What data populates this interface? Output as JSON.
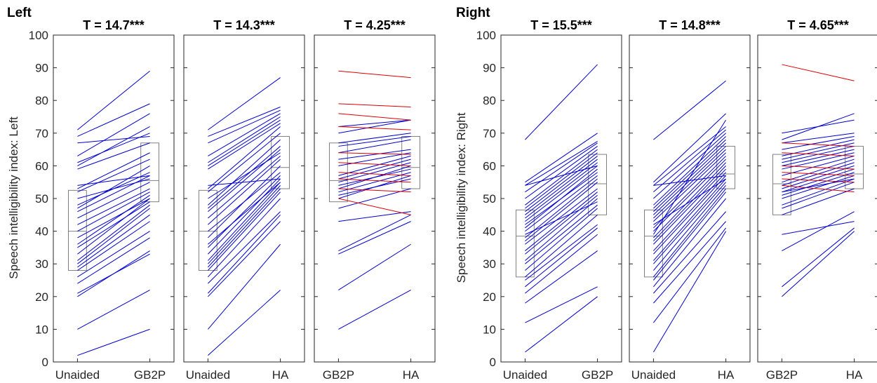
{
  "figure": {
    "groups": [
      {
        "title": "Left",
        "ylabel": "Speech intelligibility index: Left"
      },
      {
        "title": "Right",
        "ylabel": "Speech intelligibility index: Right"
      }
    ]
  },
  "chart_data": [
    {
      "type": "line",
      "group": "Left",
      "title": "T = 14.7***",
      "categories": [
        "Unaided",
        "GB2P"
      ],
      "ylim": [
        0,
        100
      ],
      "yticks": [
        "0",
        "10",
        "20",
        "30",
        "40",
        "50",
        "60",
        "70",
        "80",
        "90",
        "100"
      ],
      "box": [
        {
          "q1": 28,
          "median": 40,
          "q3": 52.5
        },
        {
          "q1": 49,
          "median": 55.5,
          "q3": 67
        }
      ],
      "pairs": [
        [
          2,
          10
        ],
        [
          10,
          22
        ],
        [
          20,
          34
        ],
        [
          21,
          33
        ],
        [
          24,
          38
        ],
        [
          26,
          40
        ],
        [
          28,
          43
        ],
        [
          29,
          45
        ],
        [
          30,
          47
        ],
        [
          31,
          48
        ],
        [
          33,
          50
        ],
        [
          35,
          49
        ],
        [
          36,
          51
        ],
        [
          38,
          50
        ],
        [
          40,
          52
        ],
        [
          42,
          53
        ],
        [
          44,
          55
        ],
        [
          46,
          57
        ],
        [
          47,
          60
        ],
        [
          48,
          58
        ],
        [
          50,
          56
        ],
        [
          52,
          62
        ],
        [
          53,
          64
        ],
        [
          54,
          57
        ],
        [
          59,
          67
        ],
        [
          60,
          72
        ],
        [
          61,
          70
        ],
        [
          63,
          76
        ],
        [
          67,
          69
        ],
        [
          69,
          79
        ],
        [
          71,
          89
        ]
      ],
      "pair_colors": [
        "blue"
      ]
    },
    {
      "type": "line",
      "group": "Left",
      "title": "T = 14.3***",
      "categories": [
        "Unaided",
        "HA"
      ],
      "ylim": [
        0,
        100
      ],
      "yticks": [
        "0",
        "10",
        "20",
        "30",
        "40",
        "50",
        "60",
        "70",
        "80",
        "90",
        "100"
      ],
      "box": [
        {
          "q1": 28,
          "median": 40,
          "q3": 52.5
        },
        {
          "q1": 53,
          "median": 59.5,
          "q3": 69
        }
      ],
      "pairs": [
        [
          2,
          22
        ],
        [
          10,
          36
        ],
        [
          20,
          43
        ],
        [
          21,
          45
        ],
        [
          24,
          46
        ],
        [
          26,
          50
        ],
        [
          28,
          52
        ],
        [
          29,
          53
        ],
        [
          30,
          54
        ],
        [
          31,
          55
        ],
        [
          33,
          56
        ],
        [
          35,
          57
        ],
        [
          36,
          55
        ],
        [
          38,
          60
        ],
        [
          40,
          58
        ],
        [
          42,
          62
        ],
        [
          44,
          63
        ],
        [
          46,
          65
        ],
        [
          47,
          66
        ],
        [
          48,
          68
        ],
        [
          50,
          64
        ],
        [
          52,
          70
        ],
        [
          53,
          72
        ],
        [
          54,
          56
        ],
        [
          59,
          73
        ],
        [
          60,
          74
        ],
        [
          61,
          75
        ],
        [
          63,
          76
        ],
        [
          67,
          77
        ],
        [
          69,
          78
        ],
        [
          71,
          87
        ]
      ],
      "pair_colors": [
        "blue"
      ]
    },
    {
      "type": "line",
      "group": "Left",
      "title": "T = 4.25***",
      "categories": [
        "GB2P",
        "HA"
      ],
      "ylim": [
        0,
        100
      ],
      "yticks": [
        "0",
        "10",
        "20",
        "30",
        "40",
        "50",
        "60",
        "70",
        "80",
        "90",
        "100"
      ],
      "box": [
        {
          "q1": 49,
          "median": 55.5,
          "q3": 67
        },
        {
          "q1": 53,
          "median": 59.5,
          "q3": 69
        }
      ],
      "pairs": [
        [
          10,
          22
        ],
        [
          22,
          36
        ],
        [
          33,
          43
        ],
        [
          34,
          45
        ],
        [
          43,
          46
        ],
        [
          47,
          53
        ],
        [
          50,
          57
        ],
        [
          51,
          56
        ],
        [
          52,
          58
        ],
        [
          53,
          60
        ],
        [
          54,
          59
        ],
        [
          55,
          61
        ],
        [
          56,
          62
        ],
        [
          57,
          63
        ],
        [
          60,
          64
        ],
        [
          62,
          65
        ],
        [
          64,
          68
        ],
        [
          66,
          69
        ],
        [
          67,
          70
        ],
        [
          70,
          74
        ],
        [
          72,
          74
        ],
        [
          89,
          87
        ],
        [
          79,
          78
        ],
        [
          76,
          74
        ],
        [
          72,
          71
        ],
        [
          64,
          63.5
        ],
        [
          58,
          57
        ],
        [
          56,
          55
        ],
        [
          53,
          52
        ],
        [
          50,
          45
        ],
        [
          61,
          60
        ]
      ],
      "pair_colors": [
        "blue",
        "blue",
        "blue",
        "blue",
        "blue",
        "blue",
        "blue",
        "blue",
        "blue",
        "blue",
        "blue",
        "blue",
        "blue",
        "blue",
        "blue",
        "blue",
        "blue",
        "blue",
        "blue",
        "blue",
        "blue",
        "red",
        "red",
        "red",
        "red",
        "red",
        "red",
        "red",
        "red",
        "red",
        "red"
      ]
    },
    {
      "type": "line",
      "group": "Right",
      "title": "T = 15.5***",
      "categories": [
        "Unaided",
        "GB2P"
      ],
      "ylim": [
        0,
        100
      ],
      "yticks": [
        "0",
        "10",
        "20",
        "30",
        "40",
        "50",
        "60",
        "70",
        "80",
        "90",
        "100"
      ],
      "box": [
        {
          "q1": 26,
          "median": 38.5,
          "q3": 46.5
        },
        {
          "q1": 45,
          "median": 54.5,
          "q3": 63.5
        }
      ],
      "pairs": [
        [
          3,
          20
        ],
        [
          12,
          23
        ],
        [
          18,
          34
        ],
        [
          21,
          39
        ],
        [
          23,
          41
        ],
        [
          25,
          42
        ],
        [
          26,
          45
        ],
        [
          28,
          47
        ],
        [
          30,
          48
        ],
        [
          31,
          50
        ],
        [
          33,
          51
        ],
        [
          34,
          52
        ],
        [
          36,
          53
        ],
        [
          37,
          55
        ],
        [
          38,
          56
        ],
        [
          40,
          57
        ],
        [
          41,
          59
        ],
        [
          43,
          60
        ],
        [
          44,
          61
        ],
        [
          45,
          62
        ],
        [
          46,
          63
        ],
        [
          47,
          64
        ],
        [
          48,
          65
        ],
        [
          50,
          66
        ],
        [
          52,
          67
        ],
        [
          54,
          67.5
        ],
        [
          55,
          70
        ],
        [
          68,
          91
        ],
        [
          54,
          60
        ],
        [
          42,
          58
        ],
        [
          39,
          49
        ]
      ],
      "pair_colors": [
        "blue"
      ]
    },
    {
      "type": "line",
      "group": "Right",
      "title": "T = 14.8***",
      "categories": [
        "Unaided",
        "HA"
      ],
      "ylim": [
        0,
        100
      ],
      "yticks": [
        "0",
        "10",
        "20",
        "30",
        "40",
        "50",
        "60",
        "70",
        "80",
        "90",
        "100"
      ],
      "box": [
        {
          "q1": 26,
          "median": 38.5,
          "q3": 46.5
        },
        {
          "q1": 53,
          "median": 57.5,
          "q3": 66
        }
      ],
      "pairs": [
        [
          3,
          40
        ],
        [
          12,
          41
        ],
        [
          18,
          43
        ],
        [
          21,
          46
        ],
        [
          23,
          50
        ],
        [
          25,
          52
        ],
        [
          26,
          53
        ],
        [
          28,
          54
        ],
        [
          30,
          55
        ],
        [
          31,
          56
        ],
        [
          33,
          57
        ],
        [
          34,
          58
        ],
        [
          36,
          59
        ],
        [
          37,
          60
        ],
        [
          38,
          61
        ],
        [
          40,
          62
        ],
        [
          41,
          63
        ],
        [
          43,
          64
        ],
        [
          44,
          65
        ],
        [
          45,
          66
        ],
        [
          46,
          67
        ],
        [
          47,
          68
        ],
        [
          48,
          69
        ],
        [
          50,
          70
        ],
        [
          52,
          71
        ],
        [
          54,
          72
        ],
        [
          55,
          76
        ],
        [
          68,
          86
        ],
        [
          54,
          57
        ],
        [
          42,
          56
        ],
        [
          39,
          74
        ]
      ],
      "pair_colors": [
        "blue"
      ]
    },
    {
      "type": "line",
      "group": "Right",
      "title": "T = 4.65***",
      "categories": [
        "GB2P",
        "HA"
      ],
      "ylim": [
        0,
        100
      ],
      "yticks": [
        "0",
        "10",
        "20",
        "30",
        "40",
        "50",
        "60",
        "70",
        "80",
        "90",
        "100"
      ],
      "box": [
        {
          "q1": 45,
          "median": 54.5,
          "q3": 63.5
        },
        {
          "q1": 53,
          "median": 57.5,
          "q3": 66
        }
      ],
      "pairs": [
        [
          20,
          40
        ],
        [
          23,
          41
        ],
        [
          34,
          46
        ],
        [
          39,
          43
        ],
        [
          45,
          53
        ],
        [
          47,
          55
        ],
        [
          48,
          56
        ],
        [
          50,
          57
        ],
        [
          51,
          58
        ],
        [
          52,
          59
        ],
        [
          53,
          60
        ],
        [
          54,
          61
        ],
        [
          55,
          62
        ],
        [
          57,
          63
        ],
        [
          59,
          64
        ],
        [
          60,
          65
        ],
        [
          61,
          66
        ],
        [
          62,
          67
        ],
        [
          63,
          68
        ],
        [
          65,
          69
        ],
        [
          67,
          70
        ],
        [
          70,
          74
        ],
        [
          91,
          86
        ],
        [
          67,
          66
        ],
        [
          64,
          63
        ],
        [
          60,
          59
        ],
        [
          58,
          57
        ],
        [
          56,
          55
        ],
        [
          54,
          52
        ],
        [
          52,
          56
        ],
        [
          68,
          76
        ]
      ],
      "pair_colors": [
        "blue",
        "blue",
        "blue",
        "blue",
        "blue",
        "blue",
        "blue",
        "blue",
        "blue",
        "blue",
        "blue",
        "blue",
        "blue",
        "blue",
        "blue",
        "blue",
        "blue",
        "blue",
        "blue",
        "blue",
        "blue",
        "blue",
        "red",
        "red",
        "red",
        "red",
        "red",
        "red",
        "red",
        "blue",
        "blue"
      ]
    }
  ],
  "colors": {
    "blue": "#0000cc",
    "red": "#dd0000",
    "box": "#808080",
    "axis": "#262626"
  }
}
